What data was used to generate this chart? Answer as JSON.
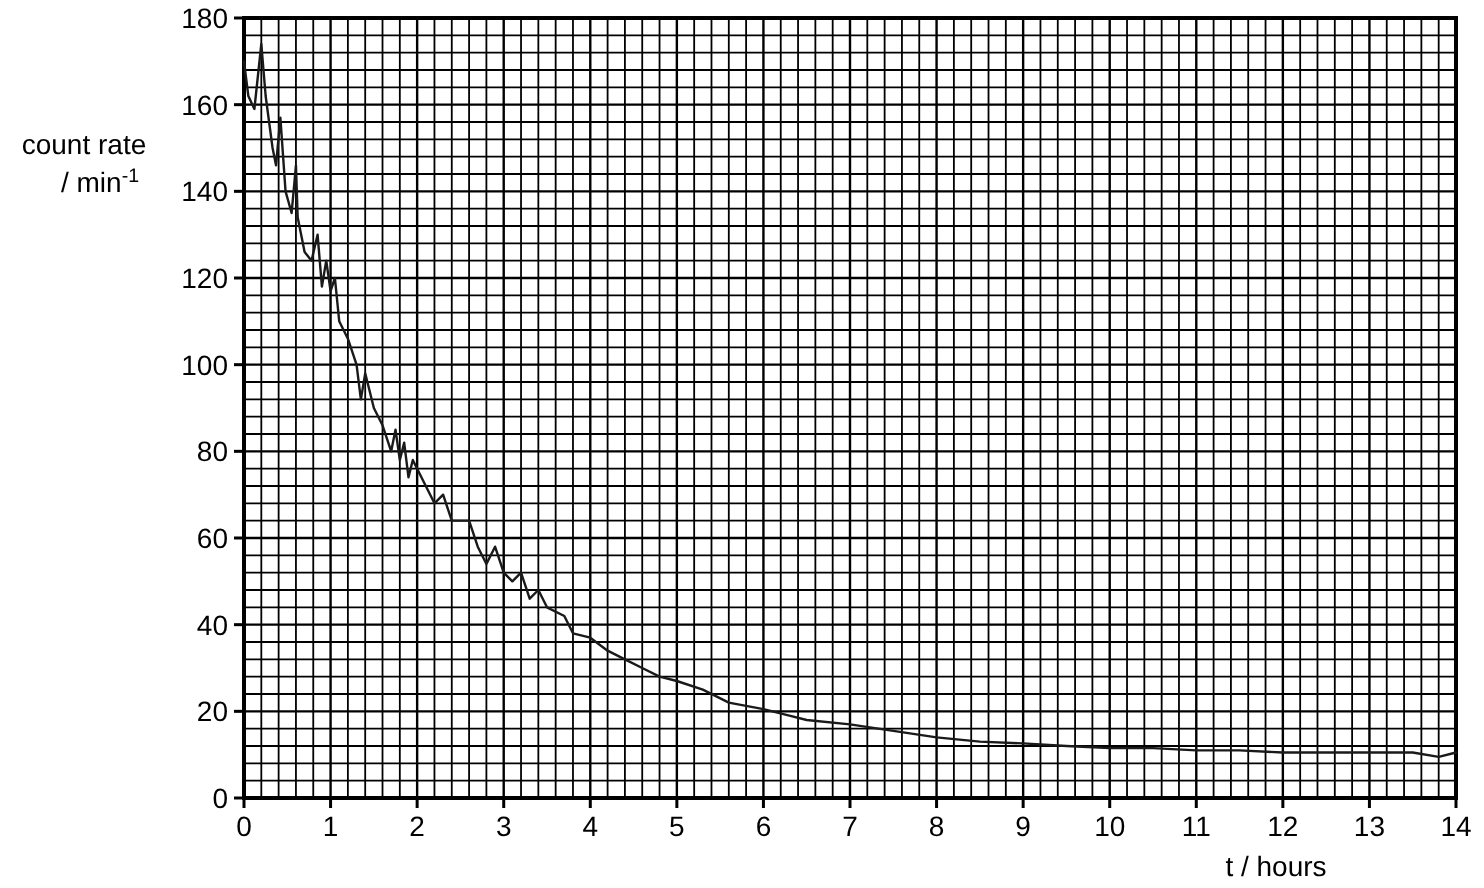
{
  "chart_data": {
    "type": "line",
    "xlabel": "t / hours",
    "ylabel": "count rate\n/ min$^{-1}$",
    "xlim": [
      0,
      14
    ],
    "ylim": [
      0,
      180
    ],
    "xticks": [
      0,
      1,
      2,
      3,
      4,
      5,
      6,
      7,
      8,
      9,
      10,
      11,
      12,
      13,
      14
    ],
    "yticks": [
      0,
      20,
      40,
      60,
      80,
      100,
      120,
      140,
      160,
      180
    ],
    "grid": true,
    "marker": "none",
    "line_style": "solid",
    "series": [
      {
        "color": "#1a1a1a",
        "x": [
          0,
          0.05,
          0.12,
          0.2,
          0.25,
          0.33,
          0.37,
          0.42,
          0.48,
          0.55,
          0.6,
          0.62,
          0.7,
          0.78,
          0.85,
          0.9,
          0.95,
          1.0,
          1.05,
          1.1,
          1.2,
          1.3,
          1.35,
          1.4,
          1.5,
          1.6,
          1.7,
          1.75,
          1.8,
          1.85,
          1.9,
          1.95,
          2.0,
          2.1,
          2.2,
          2.3,
          2.4,
          2.6,
          2.7,
          2.8,
          2.9,
          3.0,
          3.1,
          3.2,
          3.3,
          3.4,
          3.5,
          3.7,
          3.8,
          4.0,
          4.2,
          4.4,
          4.6,
          4.8,
          5.0,
          5.3,
          5.6,
          6.0,
          6.3,
          6.5,
          7.0,
          7.5,
          8.0,
          8.5,
          9.0,
          9.5,
          10,
          10.5,
          11,
          11.5,
          12,
          12.5,
          13,
          13.5,
          13.8,
          14
        ],
        "values": [
          170,
          162,
          159,
          174,
          162,
          150,
          146,
          157,
          140,
          135,
          146,
          134,
          126,
          124,
          130,
          118,
          124,
          117,
          120,
          110,
          106,
          100,
          92,
          98,
          90,
          86,
          80,
          85,
          78,
          82,
          74,
          78,
          76,
          72,
          68,
          70,
          64,
          64,
          58,
          54,
          58,
          52,
          50,
          52,
          46,
          48,
          44,
          42,
          38,
          37,
          34,
          32,
          30,
          28,
          27,
          25,
          22,
          20.5,
          19,
          18,
          17,
          15.5,
          14,
          13,
          12.6,
          12,
          11.5,
          11.5,
          11,
          11,
          10.5,
          10.5,
          10.5,
          10.5,
          9.5,
          10.5
        ]
      }
    ]
  }
}
